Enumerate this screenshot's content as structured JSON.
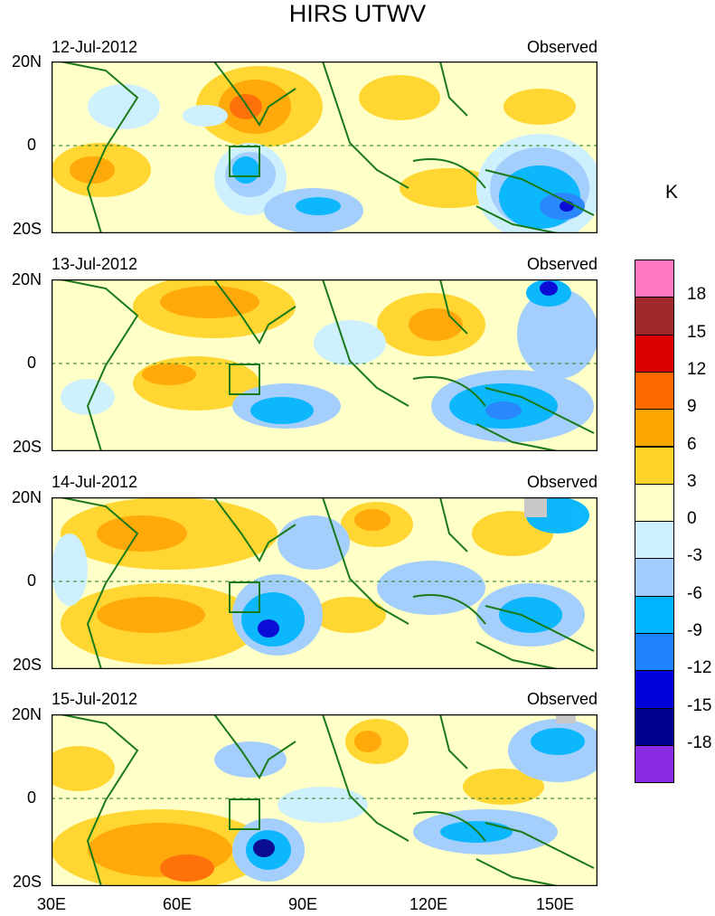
{
  "title": "HIRS UTWV",
  "unit": "K",
  "panels": [
    {
      "date": "12-Jul-2012",
      "label": "Observed"
    },
    {
      "date": "13-Jul-2012",
      "label": "Observed"
    },
    {
      "date": "14-Jul-2012",
      "label": "Observed"
    },
    {
      "date": "15-Jul-2012",
      "label": "Observed"
    }
  ],
  "lat_labels": [
    "20N",
    "0",
    "20S"
  ],
  "lon_labels": [
    "30E",
    "60E",
    "90E",
    "120E",
    "150E"
  ],
  "colorbar": {
    "ticks": [
      "18",
      "15",
      "12",
      "9",
      "6",
      "3",
      "0",
      "-3",
      "-6",
      "-9",
      "-12",
      "-15",
      "-18"
    ],
    "colors": [
      "#ff77c0",
      "#a02828",
      "#dd0000",
      "#ff6a00",
      "#ffa500",
      "#ffd42a",
      "#ffffc8",
      "#ccf0ff",
      "#a0ccff",
      "#00b4ff",
      "#1e82ff",
      "#0000d8",
      "#000090",
      "#8a2be2"
    ]
  },
  "chart_data": {
    "type": "heatmap",
    "title": "HIRS UTWV",
    "x_range": [
      "30E",
      "160E"
    ],
    "y_range": [
      "20S",
      "20N"
    ],
    "colorbar_levels": [
      -18,
      -15,
      -12,
      -9,
      -6,
      -3,
      0,
      3,
      6,
      9,
      12,
      15,
      18
    ],
    "units": "K",
    "panels": [
      "12-Jul-2012",
      "13-Jul-2012",
      "14-Jul-2012",
      "15-Jul-2012"
    ]
  }
}
